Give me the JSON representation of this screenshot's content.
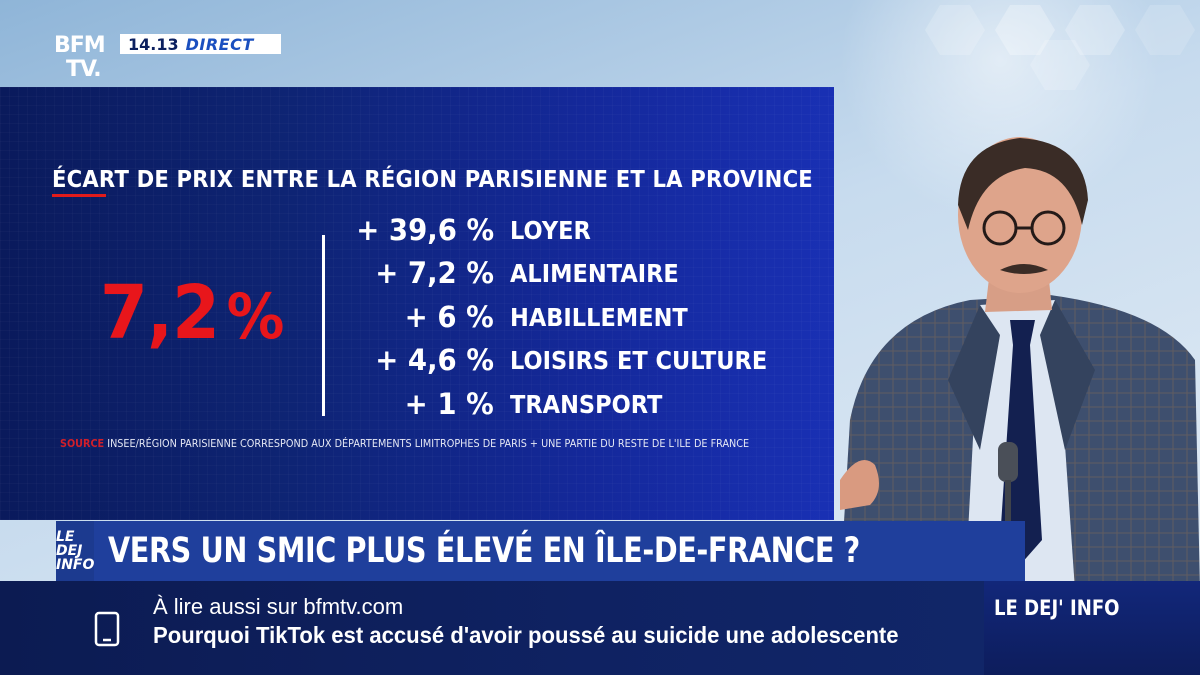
{
  "channel": {
    "logo_line1": "BFM",
    "logo_line2": "TV.",
    "time": "14.13",
    "live_label": "DIRECT"
  },
  "infographic": {
    "title": "ÉCART DE PRIX ENTRE LA RÉGION PARISIENNE ET LA PROVINCE",
    "headline_value": "7,2",
    "headline_unit": "%",
    "rows": [
      {
        "value": "+ 39,6 %",
        "category": "LOYER"
      },
      {
        "value": "+ 7,2 %",
        "category": "ALIMENTAIRE"
      },
      {
        "value": "+ 6 %",
        "category": "HABILLEMENT"
      },
      {
        "value": "+ 4,6 %",
        "category": "LOISIRS ET CULTURE"
      },
      {
        "value": "+ 1 %",
        "category": "TRANSPORT"
      }
    ],
    "source_label": "SOURCE",
    "source_text": "INSEE/RÉGION PARISIENNE CORRESPOND AUX DÉPARTEMENTS LIMITROPHES DE PARIS + UNE PARTIE DU RESTE DE L'ILE DE FRANCE"
  },
  "headline_band": {
    "show_tag_line1": "LE DEJ",
    "show_tag_line2": "INFO",
    "headline": "VERS UN SMIC PLUS ÉLEVÉ EN ÎLE-DE-FRANCE ?"
  },
  "ticker": {
    "line1": "À lire aussi sur bfmtv.com",
    "line2": "Pourquoi TikTok est accusé d'avoir poussé au suicide une adolescente",
    "icon": "phone-icon"
  },
  "show_box": {
    "label": "LE DEJ' INFO"
  },
  "colors": {
    "panel_bg": "#0e2474",
    "accent_red": "#e8161b",
    "headline_blue": "#1f3f9c",
    "ticker_bg": "#0f2262"
  }
}
